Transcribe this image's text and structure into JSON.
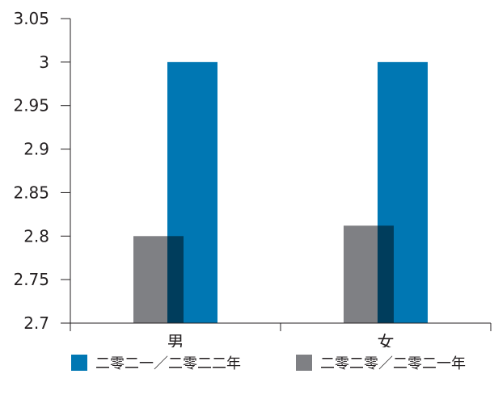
{
  "chart_data": {
    "type": "bar",
    "categories": [
      "男",
      "女"
    ],
    "series": [
      {
        "name": "二零二一／二零二二年",
        "values": [
          3.0,
          3.0
        ],
        "color": "#0077b3"
      },
      {
        "name": "二零二零／二零二一年",
        "values": [
          2.8,
          2.812
        ],
        "color": "#7f8084"
      }
    ],
    "ylim": [
      2.7,
      3.05
    ],
    "yticks": [
      "2.7",
      "2.75",
      "2.8",
      "2.85",
      "2.9",
      "2.95",
      "3",
      "3.05"
    ],
    "overlap_color": "#003d5c",
    "grid": false,
    "legend_position": "bottom",
    "title": "",
    "xlabel": "",
    "ylabel": ""
  }
}
